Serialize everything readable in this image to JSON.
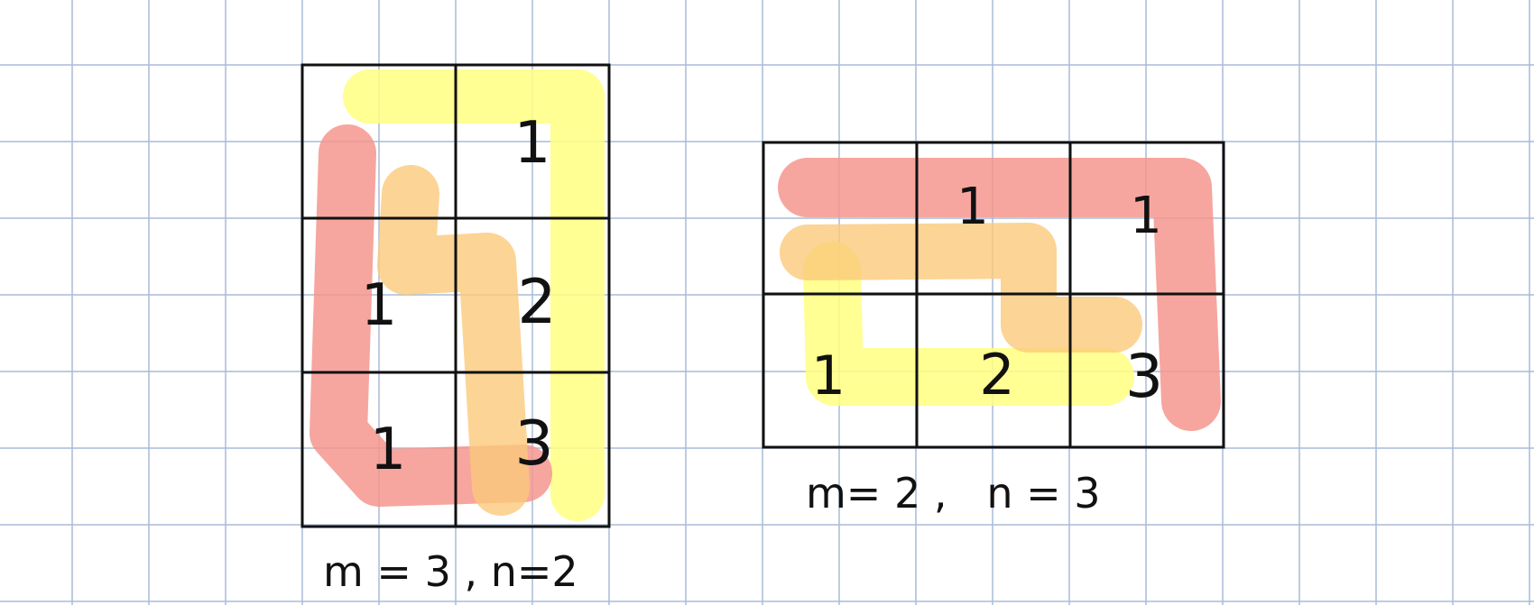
{
  "background_grid_color": "#a9bcd9",
  "highlight_colors": {
    "red": "#f4978e",
    "orange": "#fbc97a",
    "yellow": "#ffff80"
  },
  "figures": [
    {
      "id": "left",
      "caption": "m = 3 , n=2",
      "rows": 3,
      "cols": 2,
      "cells": [
        [
          "",
          "1"
        ],
        [
          "1",
          "2"
        ],
        [
          "1",
          "3"
        ]
      ]
    },
    {
      "id": "right",
      "caption": "m= 2 ,   n = 3",
      "rows": 2,
      "cols": 3,
      "cells": [
        [
          "",
          "1",
          "1"
        ],
        [
          "1",
          "2",
          "3"
        ]
      ]
    }
  ]
}
